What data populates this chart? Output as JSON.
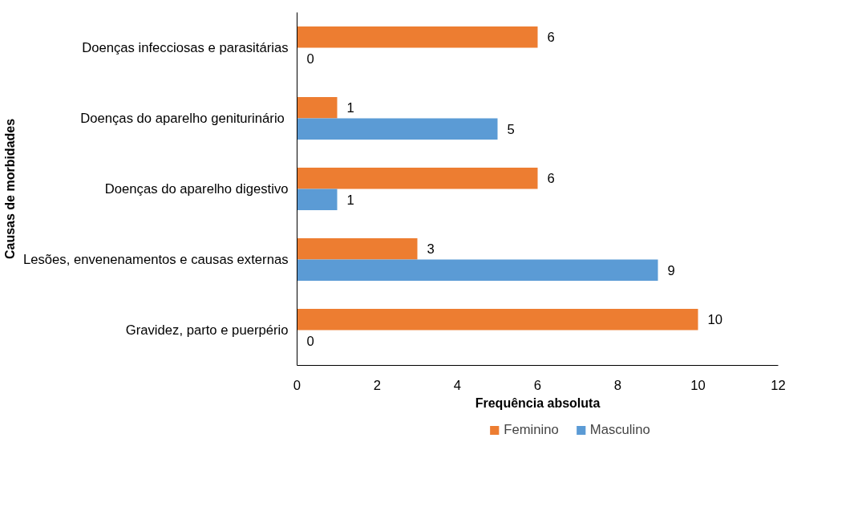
{
  "chart_data": {
    "type": "bar",
    "orientation": "horizontal",
    "xlabel": "Frequência absoluta",
    "ylabel": "Causas de morbidades",
    "categories": [
      "Doenças infecciosas e parasitárias",
      "Doenças do aparelho geniturinário ",
      "Doenças do aparelho digestivo",
      "Lesões, envenenamentos e causas externas",
      "Gravidez, parto e puerpério"
    ],
    "series": [
      {
        "name": "Feminino",
        "color": "#ed7d31",
        "values": [
          6,
          1,
          6,
          3,
          10
        ]
      },
      {
        "name": "Masculino",
        "color": "#5b9bd5",
        "values": [
          0,
          5,
          1,
          9,
          0
        ]
      }
    ],
    "xlim": [
      0,
      12
    ],
    "xticks": [
      0,
      2,
      4,
      6,
      8,
      10,
      12
    ],
    "data_labels": true,
    "grid": false,
    "legend": "bottom"
  }
}
